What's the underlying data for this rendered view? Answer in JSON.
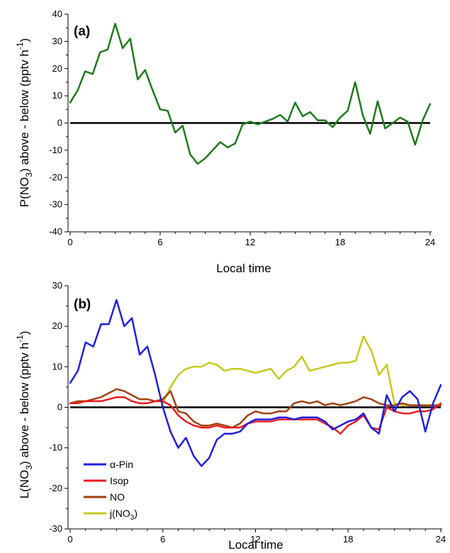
{
  "chart_data": [
    {
      "type": "line",
      "panel_label": "(a)",
      "ylabel": "P(NO3) above - below (pptv h-1)",
      "ylabel_parts": {
        "p1": "P(NO",
        "sub": "3",
        "p2": ") above - below (pptv h",
        "sup": "-1",
        "p3": ")"
      },
      "xlabel": "Local time",
      "xlim": [
        0,
        24
      ],
      "ylim": [
        -40,
        40
      ],
      "xticks": [
        0,
        6,
        12,
        18,
        24
      ],
      "yticks": [
        -40,
        -30,
        -20,
        -10,
        0,
        10,
        20,
        30,
        40
      ],
      "zero_line": true,
      "series": [
        {
          "color": "#1e7a1e",
          "x": [
            0,
            0.5,
            1,
            1.5,
            2,
            2.5,
            3,
            3.5,
            4,
            4.5,
            5,
            5.5,
            6,
            6.5,
            7,
            7.5,
            8,
            8.5,
            9,
            9.5,
            10,
            10.5,
            11,
            11.5,
            12,
            12.5,
            13,
            13.5,
            14,
            14.5,
            15,
            15.5,
            16,
            16.5,
            17,
            17.5,
            18,
            18.5,
            19,
            19.5,
            20,
            20.5,
            21,
            21.5,
            22,
            22.5,
            23,
            23.5,
            24
          ],
          "values": [
            7.5,
            12,
            19,
            18,
            26,
            27,
            36.5,
            27.5,
            31,
            16,
            19.5,
            12,
            5,
            4.5,
            -3.5,
            -1,
            -11.5,
            -15,
            -13,
            -10,
            -7,
            -9,
            -7.5,
            -0.5,
            0.5,
            -0.5,
            0.5,
            1.5,
            3,
            0.5,
            7.5,
            2.5,
            4,
            1,
            1,
            -1.5,
            2,
            4.5,
            15,
            3,
            -4,
            8,
            -2,
            0,
            2,
            0.5,
            -8,
            1,
            7
          ]
        }
      ]
    },
    {
      "type": "line",
      "panel_label": "(b)",
      "ylabel": "L(NO3) above - below (pptv h-1)",
      "ylabel_parts": {
        "p1": "L(NO",
        "sub": "3",
        "p2": ") above - below (pptv h",
        "sup": "-1",
        "p3": ")"
      },
      "xlabel": "Local time",
      "xlim": [
        0,
        24
      ],
      "ylim": [
        -30,
        30
      ],
      "xticks": [
        0,
        6,
        12,
        18,
        24
      ],
      "yticks": [
        -30,
        -20,
        -10,
        0,
        10,
        20,
        30
      ],
      "zero_line": true,
      "legend_position": "bottom-left",
      "series": [
        {
          "name": "α-Pin",
          "color": "#1f1fe0",
          "x": [
            0,
            0.5,
            1,
            1.5,
            2,
            2.5,
            3,
            3.5,
            4,
            4.5,
            5,
            5.5,
            6,
            6.5,
            7,
            7.5,
            8,
            8.5,
            9,
            9.5,
            10,
            10.5,
            11,
            11.5,
            12,
            12.5,
            13,
            13.5,
            14,
            14.5,
            15,
            15.5,
            16,
            16.5,
            17,
            17.5,
            18,
            18.5,
            19,
            19.5,
            20,
            20.5,
            21,
            21.5,
            22,
            22.5,
            23,
            23.5,
            24
          ],
          "values": [
            6,
            9,
            16,
            15,
            20.5,
            20.5,
            26.5,
            20,
            22,
            13,
            15,
            8,
            0,
            -6,
            -10,
            -7.5,
            -12,
            -14.5,
            -12.5,
            -8,
            -6.5,
            -6.5,
            -6,
            -4,
            -3,
            -3,
            -3,
            -2.5,
            -2.5,
            -3,
            -2.5,
            -2.5,
            -2.5,
            -3.5,
            -5.5,
            -4.5,
            -3.5,
            -3,
            -1.5,
            -5,
            -6.5,
            3,
            -1,
            2.5,
            4,
            2,
            -6,
            1,
            5.5
          ]
        },
        {
          "name": "Isop",
          "color": "#ee1b1b",
          "x": [
            0,
            0.5,
            1,
            1.5,
            2,
            2.5,
            3,
            3.5,
            4,
            4.5,
            5,
            5.5,
            6,
            6.5,
            7,
            7.5,
            8,
            8.5,
            9,
            9.5,
            10,
            10.5,
            11,
            11.5,
            12,
            12.5,
            13,
            13.5,
            14,
            14.5,
            15,
            15.5,
            16,
            16.5,
            17,
            17.5,
            18,
            18.5,
            19,
            19.5,
            20,
            20.5,
            21,
            21.5,
            22,
            22.5,
            23,
            23.5,
            24
          ],
          "values": [
            1,
            1,
            1.5,
            1.5,
            1.5,
            2,
            2.5,
            2.5,
            1.5,
            1,
            1,
            1.5,
            1.5,
            0.5,
            -2,
            -3.5,
            -4.5,
            -5,
            -5,
            -4.5,
            -5,
            -5,
            -5,
            -4,
            -3.5,
            -3.5,
            -3.5,
            -3,
            -3,
            -3,
            -3,
            -3,
            -3,
            -4,
            -5,
            -6.5,
            -4.5,
            -3.5,
            -2,
            -5,
            -5.5,
            0,
            -1,
            -1.5,
            -1.5,
            -1,
            -1,
            -0.5,
            1
          ]
        },
        {
          "name": "NO",
          "color": "#a0400f",
          "x": [
            0,
            0.5,
            1,
            1.5,
            2,
            2.5,
            3,
            3.5,
            4,
            4.5,
            5,
            5.5,
            6,
            6.5,
            7,
            7.5,
            8,
            8.5,
            9,
            9.5,
            10,
            10.5,
            11,
            11.5,
            12,
            12.5,
            13,
            13.5,
            14,
            14.5,
            15,
            15.5,
            16,
            16.5,
            17,
            17.5,
            18,
            18.5,
            19,
            19.5,
            20,
            20.5,
            21,
            21.5,
            22,
            22.5,
            23,
            23.5,
            24
          ],
          "values": [
            1,
            1.5,
            1.5,
            2,
            2.5,
            3.5,
            4.5,
            4,
            3,
            2,
            2,
            1.5,
            2,
            4,
            -1,
            -1.5,
            -3.5,
            -4.5,
            -4.5,
            -4,
            -4.5,
            -5,
            -4,
            -2,
            -1,
            -1.5,
            -1.5,
            -1,
            -1,
            1,
            1.5,
            1,
            1.5,
            0.5,
            1,
            0.5,
            1,
            1.5,
            2.5,
            2,
            1,
            0.5,
            0.5,
            1,
            0.5,
            0.5,
            0.5,
            0.5,
            0.5
          ]
        },
        {
          "name": "j(NO3)",
          "name_parts": {
            "p1": "j(NO",
            "sub": "3",
            "p2": ")"
          },
          "color": "#c8c81e",
          "x": [
            6,
            6.5,
            7,
            7.5,
            8,
            8.5,
            9,
            9.5,
            10,
            10.5,
            11,
            11.5,
            12,
            12.5,
            13,
            13.5,
            14,
            14.5,
            15,
            15.5,
            16,
            16.5,
            17,
            17.5,
            18,
            18.5,
            19,
            19.5,
            20,
            20.5,
            21,
            21.5,
            22,
            22.5,
            23
          ],
          "values": [
            1,
            5,
            8,
            9.5,
            10,
            10,
            11,
            10.5,
            9,
            9.5,
            9.5,
            9,
            8.5,
            9,
            9.5,
            7,
            9,
            10,
            12.5,
            9,
            9.5,
            10,
            10.5,
            11,
            11,
            11.5,
            17.5,
            14,
            8,
            10.5,
            1,
            0.5,
            0.5,
            0.5,
            0.5
          ]
        }
      ]
    }
  ]
}
